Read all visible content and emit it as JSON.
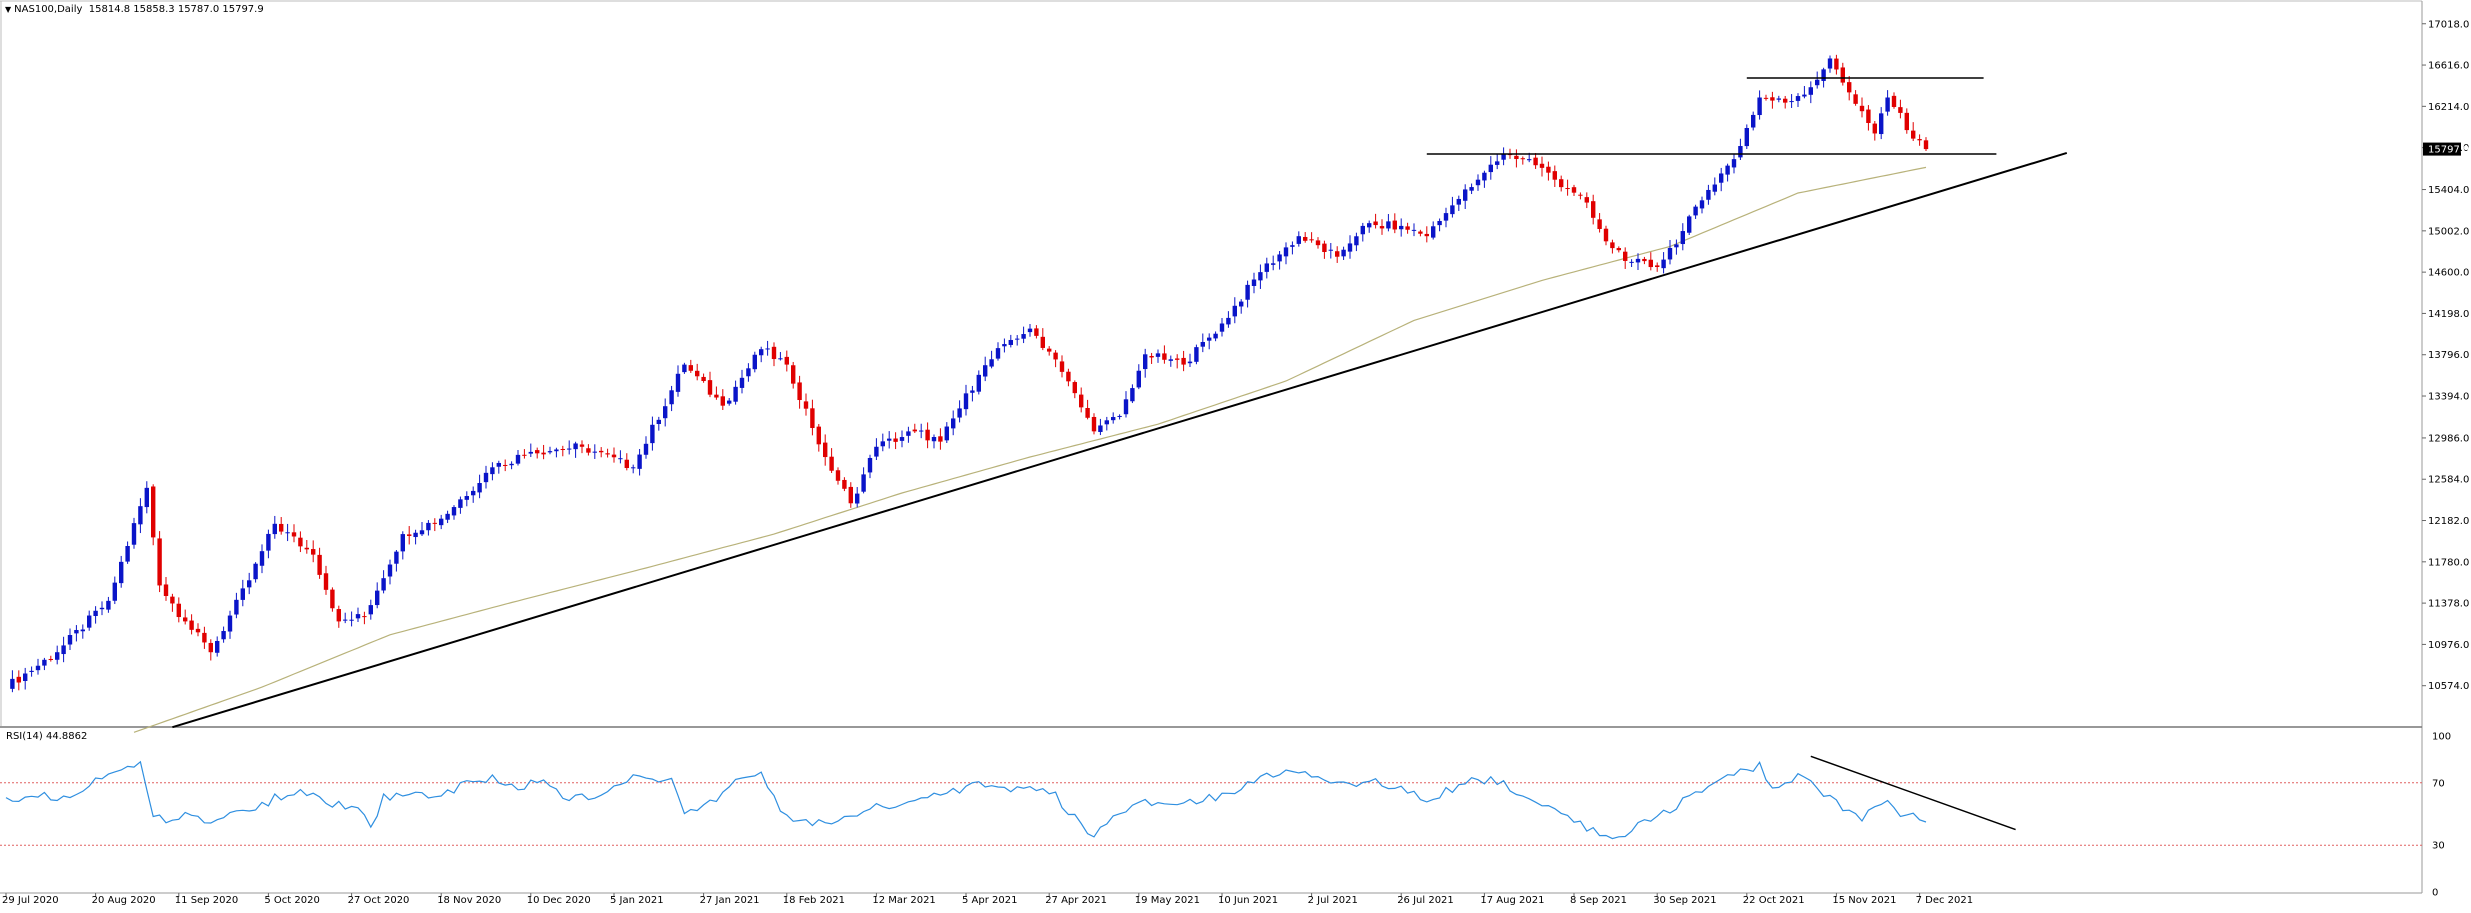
{
  "header": {
    "symbol": "NAS100,Daily",
    "ohlc": "15814.8 15858.3 15787.0 15797.9"
  },
  "current_price_label": "15797.9",
  "rsi": {
    "label": "RSI(14) 44.8862",
    "levels": [
      100,
      70,
      30,
      0
    ],
    "level_labels": [
      "100",
      "70",
      "30",
      "0"
    ]
  },
  "colors": {
    "bull": "#0a14c8",
    "bear": "#e00000",
    "ma": "#b8b27a",
    "rsi_line": "#2f8fe0",
    "trendline": "#000000",
    "level_line": "#e06060"
  },
  "chart_data": [
    {
      "type": "candlestick",
      "title": "",
      "ylim": [
        10172,
        17220
      ],
      "y_ticks": [
        "17018.0",
        "16616.0",
        "16214.0",
        "15812.0",
        "15404.0",
        "15002.0",
        "14600.0",
        "14198.0",
        "13796.0",
        "13394.0",
        "12986.0",
        "12584.0",
        "12182.0",
        "11780.0",
        "11378.0",
        "10976.0",
        "10574.0"
      ],
      "x_ticks": [
        "29 Jul 2020",
        "20 Aug 2020",
        "11 Sep 2020",
        "5 Oct 2020",
        "27 Oct 2020",
        "18 Nov 2020",
        "10 Dec 2020",
        "5 Jan 2021",
        "27 Jan 2021",
        "18 Feb 2021",
        "12 Mar 2021",
        "5 Apr 2021",
        "27 Apr 2021",
        "19 May 2021",
        "10 Jun 2021",
        "2 Jul 2021",
        "26 Jul 2021",
        "17 Aug 2021",
        "8 Sep 2021",
        "30 Sep 2021",
        "22 Oct 2021",
        "15 Nov 2021",
        "7 Dec 2021"
      ],
      "close_anchors": [
        [
          0,
          10560
        ],
        [
          8,
          10900
        ],
        [
          16,
          11400
        ],
        [
          22,
          12500
        ],
        [
          24,
          11550
        ],
        [
          28,
          11200
        ],
        [
          32,
          10900
        ],
        [
          38,
          11600
        ],
        [
          42,
          12150
        ],
        [
          48,
          11850
        ],
        [
          52,
          11200
        ],
        [
          56,
          11250
        ],
        [
          62,
          12050
        ],
        [
          68,
          12200
        ],
        [
          76,
          12700
        ],
        [
          82,
          12850
        ],
        [
          90,
          12900
        ],
        [
          98,
          12700
        ],
        [
          106,
          13700
        ],
        [
          112,
          13300
        ],
        [
          118,
          13850
        ],
        [
          122,
          13700
        ],
        [
          128,
          12800
        ],
        [
          132,
          12350
        ],
        [
          136,
          12900
        ],
        [
          142,
          13050
        ],
        [
          146,
          12950
        ],
        [
          152,
          13600
        ],
        [
          156,
          13900
        ],
        [
          160,
          14050
        ],
        [
          164,
          13750
        ],
        [
          170,
          13050
        ],
        [
          174,
          13200
        ],
        [
          178,
          13800
        ],
        [
          184,
          13700
        ],
        [
          190,
          14100
        ],
        [
          196,
          14600
        ],
        [
          202,
          14950
        ],
        [
          208,
          14750
        ],
        [
          212,
          15050
        ],
        [
          218,
          15050
        ],
        [
          222,
          14950
        ],
        [
          226,
          15250
        ],
        [
          230,
          15500
        ],
        [
          234,
          15750
        ],
        [
          238,
          15700
        ],
        [
          242,
          15500
        ],
        [
          246,
          15350
        ],
        [
          250,
          14900
        ],
        [
          254,
          14700
        ],
        [
          258,
          14650
        ],
        [
          262,
          15000
        ],
        [
          266,
          15400
        ],
        [
          270,
          15700
        ],
        [
          274,
          16300
        ],
        [
          278,
          16250
        ],
        [
          282,
          16400
        ],
        [
          285,
          16680
        ],
        [
          288,
          16350
        ],
        [
          292,
          15950
        ],
        [
          294,
          16300
        ],
        [
          296,
          16150
        ],
        [
          298,
          15900
        ],
        [
          300,
          15797.9
        ]
      ],
      "ma_anchors": [
        [
          20,
          10120
        ],
        [
          40,
          10560
        ],
        [
          60,
          11070
        ],
        [
          80,
          11400
        ],
        [
          100,
          11720
        ],
        [
          120,
          12050
        ],
        [
          140,
          12450
        ],
        [
          160,
          12800
        ],
        [
          180,
          13120
        ],
        [
          200,
          13540
        ],
        [
          220,
          14130
        ],
        [
          240,
          14520
        ],
        [
          260,
          14850
        ],
        [
          280,
          15370
        ],
        [
          300,
          15620
        ]
      ],
      "trendlines": [
        {
          "name": "support-trendline",
          "from": [
            26,
            10170
          ],
          "to": [
            322,
            15760
          ]
        },
        {
          "name": "resistance-upper",
          "from": [
            272,
            16490
          ],
          "to": [
            309,
            16490
          ]
        },
        {
          "name": "resistance-lower",
          "from": [
            222,
            15750
          ],
          "to": [
            311,
            15750
          ]
        }
      ]
    },
    {
      "type": "line",
      "title": "",
      "ylim": [
        0,
        100
      ],
      "y_ticks": [
        "100",
        "70",
        "30",
        "0"
      ],
      "series": [
        {
          "anchors": [
            [
              0,
              58
            ],
            [
              3,
              62
            ],
            [
              6,
              64
            ],
            [
              8,
              58
            ],
            [
              11,
              65
            ],
            [
              14,
              72
            ],
            [
              17,
              78
            ],
            [
              20,
              80
            ],
            [
              21,
              83
            ],
            [
              22,
              66
            ],
            [
              23,
              50
            ],
            [
              26,
              45
            ],
            [
              29,
              52
            ],
            [
              32,
              44
            ],
            [
              36,
              52
            ],
            [
              40,
              56
            ],
            [
              43,
              62
            ],
            [
              46,
              66
            ],
            [
              50,
              57
            ],
            [
              54,
              55
            ],
            [
              57,
              43
            ],
            [
              59,
              60
            ],
            [
              63,
              63
            ],
            [
              68,
              60
            ],
            [
              72,
              72
            ],
            [
              76,
              73
            ],
            [
              80,
              68
            ],
            [
              84,
              71
            ],
            [
              88,
              60
            ],
            [
              92,
              60
            ],
            [
              98,
              73
            ],
            [
              104,
              72
            ],
            [
              106,
              50
            ],
            [
              110,
              56
            ],
            [
              114,
              70
            ],
            [
              118,
              75
            ],
            [
              120,
              60
            ],
            [
              122,
              48
            ],
            [
              126,
              42
            ],
            [
              128,
              45
            ],
            [
              132,
              50
            ],
            [
              138,
              56
            ],
            [
              142,
              58
            ],
            [
              148,
              65
            ],
            [
              152,
              70
            ],
            [
              156,
              66
            ],
            [
              160,
              66
            ],
            [
              164,
              62
            ],
            [
              168,
              42
            ],
            [
              170,
              37
            ],
            [
              174,
              50
            ],
            [
              178,
              58
            ],
            [
              182,
              55
            ],
            [
              186,
              58
            ],
            [
              190,
              62
            ],
            [
              194,
              70
            ],
            [
              198,
              75
            ],
            [
              202,
              76
            ],
            [
              206,
              72
            ],
            [
              210,
              67
            ],
            [
              214,
              72
            ],
            [
              218,
              65
            ],
            [
              222,
              60
            ],
            [
              226,
              66
            ],
            [
              230,
              73
            ],
            [
              234,
              70
            ],
            [
              236,
              62
            ],
            [
              240,
              55
            ],
            [
              244,
              48
            ],
            [
              248,
              40
            ],
            [
              252,
              33
            ],
            [
              256,
              45
            ],
            [
              260,
              52
            ],
            [
              264,
              64
            ],
            [
              268,
              72
            ],
            [
              272,
              78
            ],
            [
              274,
              82
            ],
            [
              276,
              66
            ],
            [
              280,
              75
            ],
            [
              282,
              70
            ],
            [
              285,
              60
            ],
            [
              288,
              50
            ],
            [
              290,
              45
            ],
            [
              292,
              55
            ],
            [
              294,
              60
            ],
            [
              296,
              46
            ],
            [
              298,
              50
            ],
            [
              300,
              44.8862
            ]
          ]
        }
      ],
      "trendlines": [
        {
          "name": "rsi-trendline",
          "from": [
            282,
            87
          ],
          "to": [
            314,
            40
          ]
        }
      ]
    }
  ]
}
